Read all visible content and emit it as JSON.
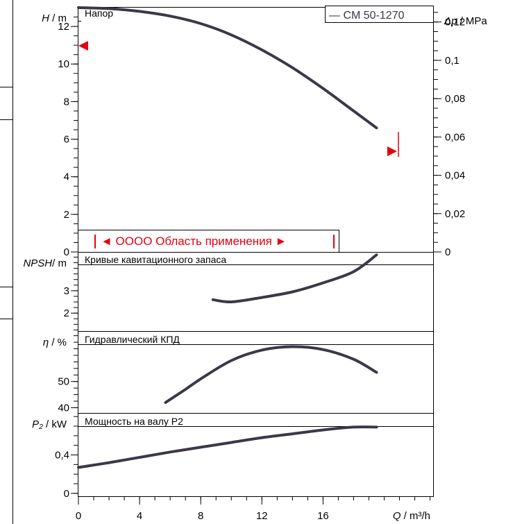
{
  "chart_data": [
    {
      "type": "line",
      "id": "head",
      "title": "Напор",
      "ylabel_var": "H",
      "ylabel_unit": " / m",
      "y2label_var": "Δp",
      "y2label_unit": " / MPa",
      "ylim": [
        0,
        13.0
      ],
      "y2lim": [
        0,
        0.1275
      ],
      "yticks": [
        "0",
        "2",
        "4",
        "6",
        "8",
        "10",
        "12"
      ],
      "yticks_values": [
        0,
        2,
        4,
        6,
        8,
        10,
        12
      ],
      "y2ticks": [
        "0",
        "0,02",
        "0,04",
        "0,06",
        "0,08",
        "0,1",
        "0,12"
      ],
      "y2ticks_values": [
        0,
        0.02,
        0.04,
        0.06,
        0.08,
        0.1,
        0.12
      ],
      "legend": "— CM 50-1270",
      "range_label": "◄ OOOO Область применения ►",
      "series": [
        {
          "values": [
            [
              0,
              13.0
            ],
            [
              2,
              12.95
            ],
            [
              4,
              12.8
            ],
            [
              6,
              12.55
            ],
            [
              8,
              12.15
            ],
            [
              10,
              11.55
            ],
            [
              12,
              10.75
            ],
            [
              14,
              9.8
            ],
            [
              16,
              8.7
            ],
            [
              18,
              7.5
            ],
            [
              19.5,
              6.6
            ]
          ]
        }
      ]
    },
    {
      "type": "line",
      "id": "npsh",
      "title": "Кривые кавитационного запаса",
      "ylabel_var": "NPSH",
      "ylabel_unit": "/ m",
      "ylim": [
        1.2,
        4.7
      ],
      "yticks": [
        "2",
        "3"
      ],
      "yticks_values": [
        2,
        3
      ],
      "series": [
        {
          "values": [
            [
              8.8,
              2.6
            ],
            [
              10,
              2.5
            ],
            [
              12,
              2.7
            ],
            [
              14,
              2.95
            ],
            [
              16,
              3.35
            ],
            [
              18,
              3.85
            ],
            [
              19.5,
              4.6
            ]
          ]
        }
      ]
    },
    {
      "type": "line",
      "id": "eta",
      "title": "Гидравлический КПД",
      "ylabel_var": "η",
      "ylabel_unit": " / %",
      "ylim": [
        38,
        69
      ],
      "yticks": [
        "40",
        "50"
      ],
      "yticks_values": [
        40,
        50
      ],
      "series": [
        {
          "values": [
            [
              5.7,
              42
            ],
            [
              7,
              47
            ],
            [
              8,
              51
            ],
            [
              10,
              58
            ],
            [
              12,
              62
            ],
            [
              14,
              63.3
            ],
            [
              16,
              62.2
            ],
            [
              18,
              58.5
            ],
            [
              19.5,
              53.5
            ]
          ]
        }
      ]
    },
    {
      "type": "line",
      "id": "power",
      "title": "Мощность на валу P2",
      "ylabel_var": "P₂",
      "ylabel_unit": " / kW",
      "ylim": [
        -0.03,
        0.83
      ],
      "yticks": [
        "0",
        "0,4"
      ],
      "yticks_values": [
        0,
        0.4
      ],
      "xlabel_var": "Q",
      "xlabel_unit": " / m³/h",
      "xlim": [
        0,
        23.2
      ],
      "xticks": [
        "0",
        "4",
        "8",
        "12",
        "16"
      ],
      "xticks_values": [
        0,
        4,
        8,
        12,
        16
      ],
      "series": [
        {
          "values": [
            [
              0,
              0.27
            ],
            [
              2,
              0.32
            ],
            [
              4,
              0.375
            ],
            [
              6,
              0.43
            ],
            [
              8,
              0.48
            ],
            [
              10,
              0.53
            ],
            [
              12,
              0.58
            ],
            [
              14,
              0.62
            ],
            [
              16,
              0.66
            ],
            [
              18,
              0.69
            ],
            [
              19.5,
              0.69
            ]
          ]
        }
      ]
    }
  ],
  "colors": {
    "curve": "#3d3747",
    "accent": "#e4000f",
    "axis": "#000000",
    "grid": "#555555"
  }
}
